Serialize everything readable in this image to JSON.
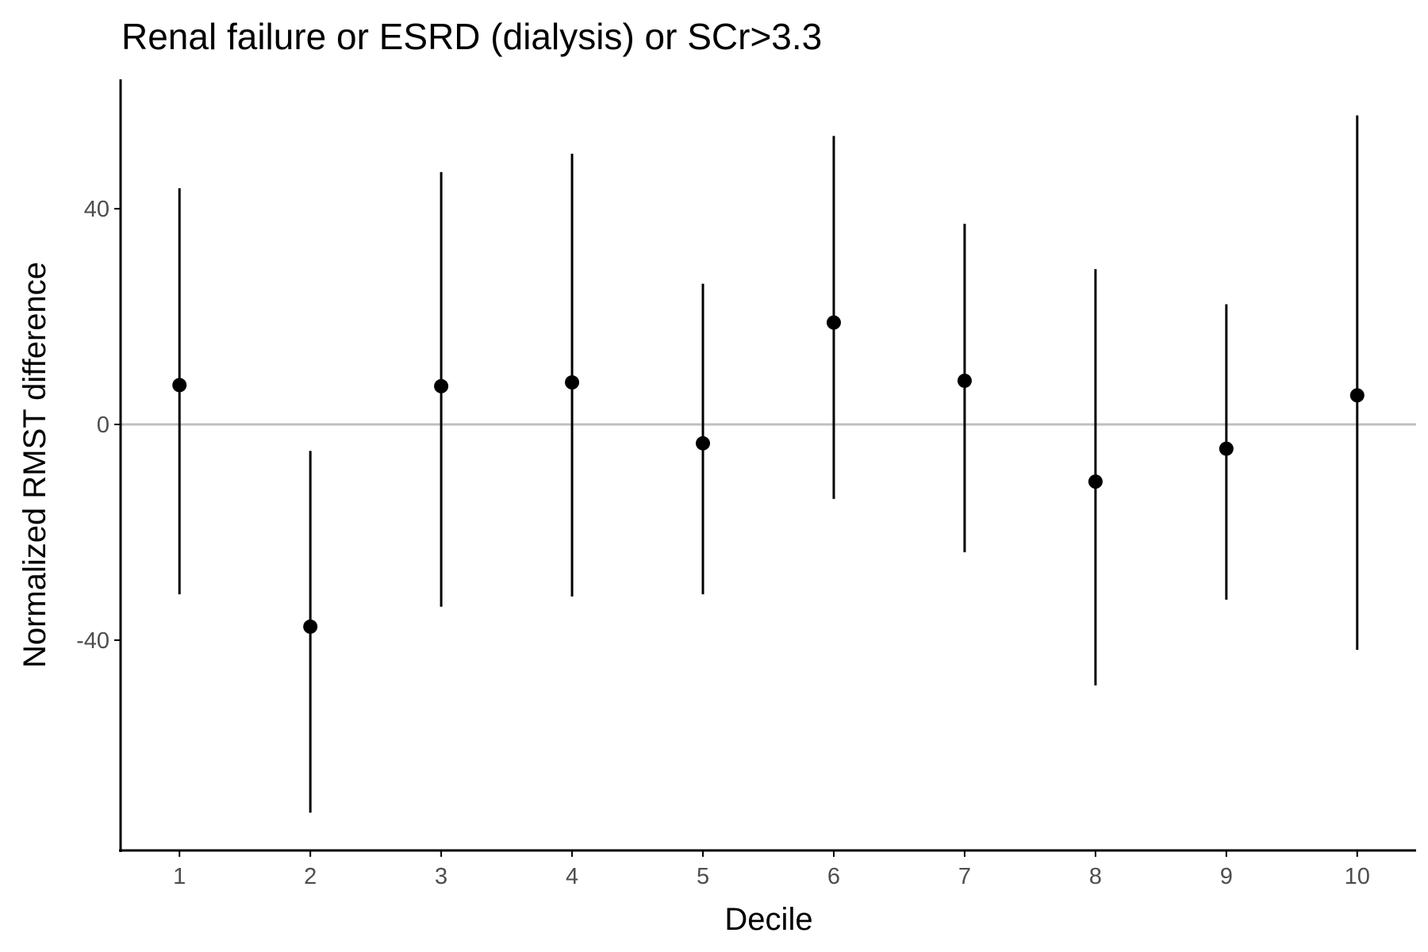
{
  "chart_data": {
    "type": "scatter",
    "title": "Renal failure or ESRD (dialysis) or SCr>3.3",
    "xlabel": "Decile",
    "ylabel": "Normalized RMST difference",
    "x": [
      1,
      2,
      3,
      4,
      5,
      6,
      7,
      8,
      9,
      10
    ],
    "x_tick_labels": [
      "1",
      "2",
      "3",
      "4",
      "5",
      "6",
      "7",
      "8",
      "9",
      "10"
    ],
    "y": [
      7.3,
      -37.5,
      7.1,
      7.8,
      -3.5,
      18.9,
      8.1,
      -10.6,
      -4.5,
      5.4
    ],
    "y_lower": [
      -31.5,
      -72.0,
      -33.8,
      -31.9,
      -31.5,
      -13.8,
      -23.7,
      -48.4,
      -32.5,
      -41.8
    ],
    "y_upper": [
      43.8,
      -4.9,
      46.8,
      50.2,
      26.1,
      53.5,
      37.2,
      28.8,
      22.3,
      57.3
    ],
    "y_ticks": [
      40,
      0,
      -40
    ],
    "y_tick_labels": [
      "40",
      "0",
      "-40"
    ],
    "xlim": [
      0.55,
      10.45
    ],
    "ylim": [
      -79,
      64
    ],
    "reference_line_y": 0,
    "grid": false,
    "legend": "none",
    "colors": {
      "points": "#000000",
      "reference_line": "#bfbfbf",
      "axis": "#000000"
    }
  }
}
